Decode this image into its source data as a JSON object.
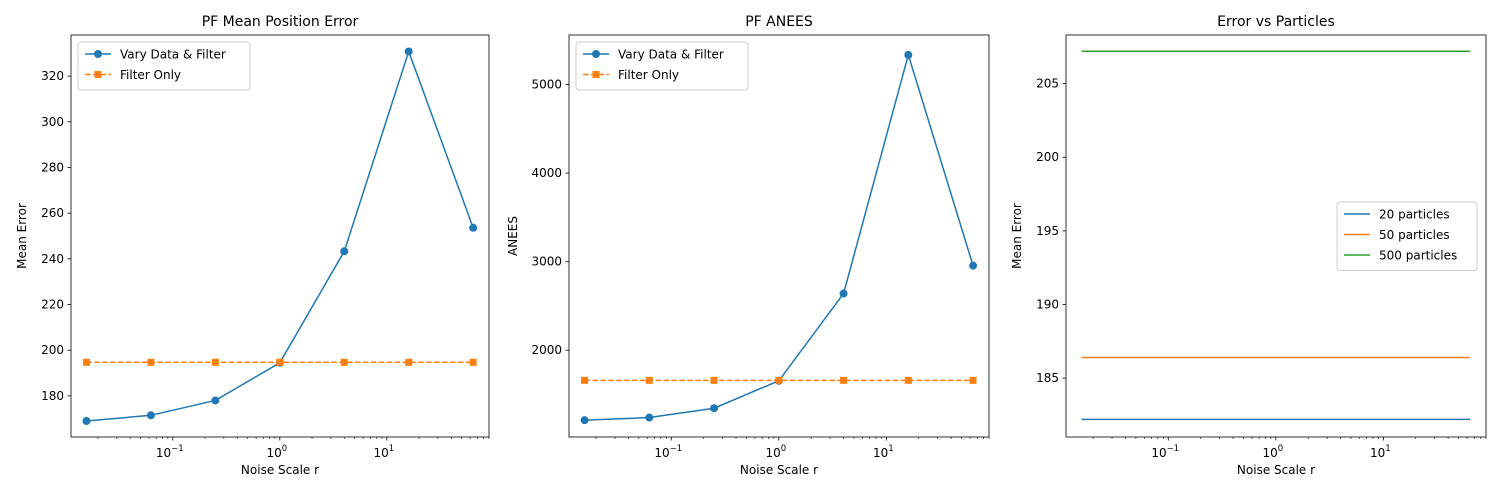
{
  "colors": {
    "blue": "#1f77b4",
    "orange": "#ff7f0e",
    "green": "#2ca02c"
  },
  "chart_data": [
    {
      "type": "line",
      "title": "PF Mean Position Error",
      "xlabel": "Noise Scale r",
      "ylabel": "Mean Error",
      "xscale": "log",
      "xlim": [
        0.0112,
        90
      ],
      "ylim": [
        162,
        338
      ],
      "x_ticks": [
        0.1,
        1,
        10
      ],
      "x_tick_labels": [
        [
          "10",
          "−1"
        ],
        [
          "10",
          "0"
        ],
        [
          "10",
          "1"
        ]
      ],
      "y_ticks": [
        180,
        200,
        220,
        240,
        260,
        280,
        300,
        320
      ],
      "legend": "upper left",
      "x": [
        0.015625,
        0.0625,
        0.25,
        1,
        4,
        16,
        64
      ],
      "series": [
        {
          "name": "Vary Data & Filter",
          "color": "#1f77b4",
          "marker": "circle",
          "linestyle": "solid",
          "values": [
            169.0,
            171.5,
            178.0,
            194.5,
            243.3,
            330.8,
            253.6
          ]
        },
        {
          "name": "Filter Only",
          "color": "#ff7f0e",
          "marker": "square",
          "linestyle": "dashed",
          "values": [
            194.7,
            194.7,
            194.7,
            194.7,
            194.7,
            194.7,
            194.7
          ]
        }
      ]
    },
    {
      "type": "line",
      "title": "PF ANEES",
      "xlabel": "Noise Scale r",
      "ylabel": "ANEES",
      "xscale": "log",
      "xlim": [
        0.0112,
        90
      ],
      "ylim": [
        1020,
        5560
      ],
      "x_ticks": [
        0.1,
        1,
        10
      ],
      "x_tick_labels": [
        [
          "10",
          "−1"
        ],
        [
          "10",
          "0"
        ],
        [
          "10",
          "1"
        ]
      ],
      "y_ticks": [
        2000,
        3000,
        4000,
        5000
      ],
      "legend": "upper left",
      "x": [
        0.015625,
        0.0625,
        0.25,
        1,
        4,
        16,
        64
      ],
      "series": [
        {
          "name": "Vary Data & Filter",
          "color": "#1f77b4",
          "marker": "circle",
          "linestyle": "solid",
          "values": [
            1210,
            1240,
            1345,
            1655,
            2640,
            5335,
            2955
          ]
        },
        {
          "name": "Filter Only",
          "color": "#ff7f0e",
          "marker": "square",
          "linestyle": "dashed",
          "values": [
            1660,
            1660,
            1660,
            1660,
            1660,
            1660,
            1660
          ]
        }
      ]
    },
    {
      "type": "line",
      "title": "Error vs Particles",
      "xlabel": "Noise Scale r",
      "ylabel": "Mean Error",
      "xscale": "log",
      "xlim": [
        0.0112,
        90
      ],
      "ylim": [
        181.0,
        208.3
      ],
      "x_ticks": [
        0.1,
        1,
        10
      ],
      "x_tick_labels": [
        [
          "10",
          "−1"
        ],
        [
          "10",
          "0"
        ],
        [
          "10",
          "1"
        ]
      ],
      "y_ticks": [
        185,
        190,
        195,
        200,
        205
      ],
      "legend": "center right",
      "x": [
        0.015625,
        64
      ],
      "series": [
        {
          "name": "20 particles",
          "color": "#1f77b4",
          "marker": "none",
          "linestyle": "solid",
          "values": [
            182.2,
            182.2
          ]
        },
        {
          "name": "50 particles",
          "color": "#ff7f0e",
          "marker": "none",
          "linestyle": "solid",
          "values": [
            186.4,
            186.4
          ]
        },
        {
          "name": "500 particles",
          "color": "#2ca02c",
          "marker": "none",
          "linestyle": "solid",
          "values": [
            207.2,
            207.2
          ]
        }
      ]
    }
  ]
}
